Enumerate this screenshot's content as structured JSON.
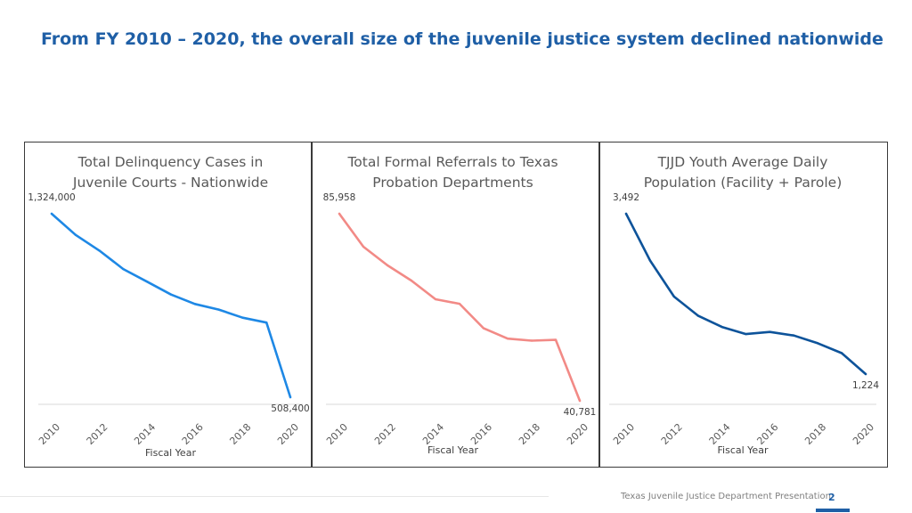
{
  "slide": {
    "title": "From FY 2010 – 2020, the overall size of the juvenile justice system declined nationwide",
    "footer": "Texas Juvenile Justice Department Presentation",
    "page_number": "2"
  },
  "colors": {
    "title": "#1f5fa6",
    "border": "#3a3a3a",
    "axis": "#d9d9d9"
  },
  "chart_data": [
    {
      "type": "line",
      "title_lines": [
        "Total Delinquency Cases in",
        "Juvenile Courts - Nationwide"
      ],
      "xlabel": "Fiscal Year",
      "x": [
        2010,
        2011,
        2012,
        2013,
        2014,
        2015,
        2016,
        2017,
        2018,
        2019,
        2020
      ],
      "tick_labels": [
        "2010",
        "2012",
        "2014",
        "2016",
        "2018",
        "2020"
      ],
      "values": [
        1324000,
        1230000,
        1160000,
        1078000,
        1022000,
        965000,
        923000,
        898000,
        862000,
        840000,
        508400
      ],
      "ylim": [
        0,
        1500000
      ],
      "color": "#1e88e5",
      "data_labels": [
        {
          "index": 0,
          "text": "1,324,000"
        },
        {
          "index": 10,
          "text": "508,400"
        }
      ]
    },
    {
      "type": "line",
      "title_lines": [
        "Total Formal Referrals to Texas",
        "Probation Departments"
      ],
      "xlabel": "Fiscal Year",
      "x": [
        2010,
        2011,
        2012,
        2013,
        2014,
        2015,
        2016,
        2017,
        2018,
        2019,
        2020
      ],
      "tick_labels": [
        "2010",
        "2012",
        "2014",
        "2016",
        "2018",
        "2020"
      ],
      "values": [
        85958,
        78000,
        73500,
        69800,
        65300,
        64200,
        58300,
        55800,
        55300,
        55500,
        40781
      ],
      "ylim": [
        0,
        100000
      ],
      "color": "#f28a86",
      "data_labels": [
        {
          "index": 0,
          "text": "85,958"
        },
        {
          "index": 10,
          "text": "40,781"
        }
      ]
    },
    {
      "type": "line",
      "title_lines": [
        "TJJD Youth Average Daily",
        "Population (Facility + Parole)"
      ],
      "xlabel": "Fiscal Year",
      "x": [
        2010,
        2011,
        2012,
        2013,
        2014,
        2015,
        2016,
        2017,
        2018,
        2019,
        2020
      ],
      "tick_labels": [
        "2010",
        "2012",
        "2014",
        "2016",
        "2018",
        "2020"
      ],
      "values": [
        3492,
        2830,
        2320,
        2050,
        1890,
        1790,
        1820,
        1770,
        1660,
        1520,
        1224
      ],
      "ylim": [
        0,
        4000
      ],
      "color": "#0d539a",
      "data_labels": [
        {
          "index": 0,
          "text": "3,492"
        },
        {
          "index": 10,
          "text": "1,224"
        }
      ]
    }
  ]
}
